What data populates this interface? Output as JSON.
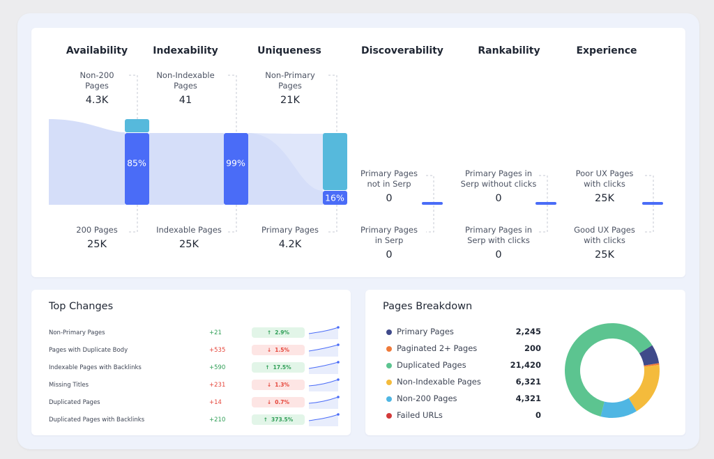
{
  "funnel": {
    "columns": [
      {
        "title": "Availability"
      },
      {
        "title": "Indexability"
      },
      {
        "title": "Uniqueness"
      },
      {
        "title": "Discoverability"
      },
      {
        "title": "Rankability"
      },
      {
        "title": "Experience"
      }
    ],
    "stages": [
      {
        "top_label": "Non-200\nPages",
        "top_value": "4.3K",
        "bottom_label": "200 Pages",
        "bottom_value": "25K",
        "pct": "85%"
      },
      {
        "top_label": "Non-Indexable\nPages",
        "top_value": "41",
        "bottom_label": "Indexable Pages",
        "bottom_value": "25K",
        "pct": "99%"
      },
      {
        "top_label": "Non-Primary\nPages",
        "top_value": "21K",
        "bottom_label": "Primary Pages",
        "bottom_value": "4.2K",
        "pct": "16%"
      }
    ],
    "outcomes": [
      {
        "top_label": "Primary Pages\nnot in Serp",
        "top_value": "0",
        "bottom_label": "Primary Pages\nin Serp",
        "bottom_value": "0"
      },
      {
        "top_label": "Primary Pages in\nSerp without clicks",
        "top_value": "0",
        "bottom_label": "Primary Pages in\nSerp with clicks",
        "bottom_value": "0"
      },
      {
        "top_label": "Poor UX Pages\nwith clicks",
        "top_value": "25K",
        "bottom_label": "Good UX Pages\nwith clicks",
        "bottom_value": "25K"
      }
    ]
  },
  "top_changes": {
    "title": "Top Changes",
    "rows": [
      {
        "name": "Non-Primary Pages",
        "delta": "+21",
        "direction": "up",
        "badge": "2.9%",
        "arrow": "↑"
      },
      {
        "name": "Pages with Duplicate Body",
        "delta": "+535",
        "direction": "down",
        "badge": "1.5%",
        "arrow": "↓"
      },
      {
        "name": "Indexable Pages with Backlinks",
        "delta": "+590",
        "direction": "up",
        "badge": "17.5%",
        "arrow": "↑"
      },
      {
        "name": "Missing Titles",
        "delta": "+231",
        "direction": "down",
        "badge": "1.3%",
        "arrow": "↓"
      },
      {
        "name": "Duplicated Pages",
        "delta": "+14",
        "direction": "down",
        "badge": "0.7%",
        "arrow": "↓"
      },
      {
        "name": "Duplicated Pages with Backlinks",
        "delta": "+210",
        "direction": "up",
        "badge": "373.5%",
        "arrow": "↑"
      }
    ]
  },
  "pages_breakdown": {
    "title": "Pages Breakdown",
    "items": [
      {
        "name": "Primary Pages",
        "value": "2,245",
        "count": 2245,
        "color": "#3f4a8a"
      },
      {
        "name": "Paginated 2+ Pages",
        "value": "200",
        "count": 200,
        "color": "#ef7a3a"
      },
      {
        "name": "Duplicated Pages",
        "value": "21,420",
        "count": 21420,
        "color": "#5cc490"
      },
      {
        "name": "Non-Indexable Pages",
        "value": "6,321",
        "count": 6321,
        "color": "#f4bb3c"
      },
      {
        "name": "Non-200 Pages",
        "value": "4,321",
        "count": 4321,
        "color": "#4fb6e3"
      },
      {
        "name": "Failed URLs",
        "value": "0",
        "count": 0,
        "color": "#d33a3a"
      }
    ]
  },
  "colors": {
    "bar_blue": "#4a6cf7",
    "bar_cyan": "#56b9dc",
    "flow": "#d5def9",
    "accent": "#4a6cf7"
  }
}
